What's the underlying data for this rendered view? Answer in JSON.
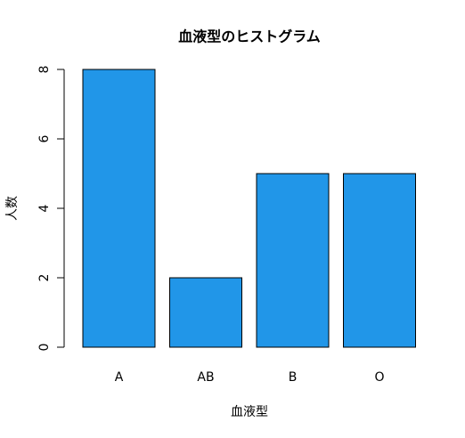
{
  "chart_data": {
    "type": "bar",
    "title": "血液型のヒストグラム",
    "x_label": "血液型",
    "y_label": "人数",
    "categories": [
      "A",
      "AB",
      "B",
      "O"
    ],
    "values": [
      8,
      2,
      5,
      5
    ],
    "color": "#2196e8",
    "ylim": [
      0,
      8
    ],
    "yticks": [
      0,
      2,
      4,
      6,
      8
    ],
    "grid": false
  }
}
